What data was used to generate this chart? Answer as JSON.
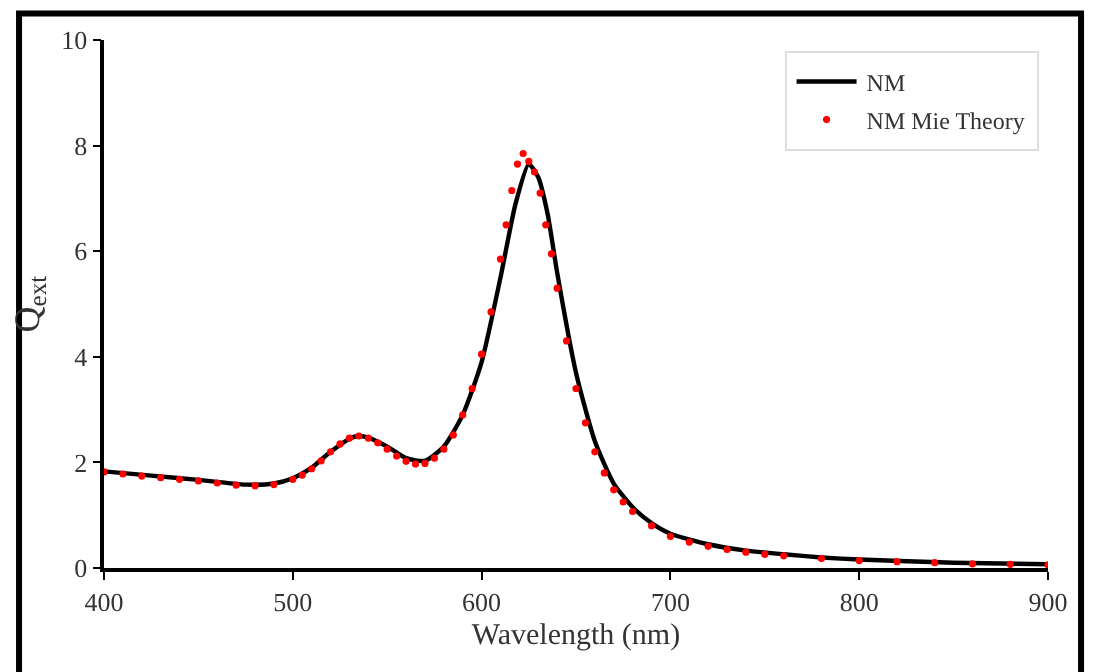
{
  "chart_data": {
    "type": "line",
    "xlabel": "Wavelength (nm)",
    "ylabel": "Q$_{ext}$",
    "xlim": [
      400,
      900
    ],
    "xticks": [
      400,
      500,
      600,
      700,
      800,
      900
    ],
    "ylim": [
      0,
      10
    ],
    "yticks": [
      0,
      2,
      4,
      6,
      8,
      10
    ],
    "legend": "top right",
    "series": [
      {
        "name": "NM",
        "color": "#000000",
        "line_style": "solid",
        "marker": "none",
        "x": [
          400,
          425,
          450,
          475,
          490,
          500,
          510,
          520,
          530,
          535,
          540,
          550,
          560,
          570,
          580,
          590,
          600,
          610,
          618,
          625,
          630,
          635,
          640,
          650,
          660,
          670,
          680,
          690,
          700,
          720,
          740,
          760,
          780,
          800,
          850,
          900
        ],
        "values": [
          1.83,
          1.75,
          1.67,
          1.58,
          1.6,
          1.7,
          1.9,
          2.2,
          2.45,
          2.5,
          2.47,
          2.3,
          2.08,
          2.03,
          2.3,
          2.9,
          3.9,
          5.5,
          6.9,
          7.65,
          7.4,
          6.7,
          5.6,
          3.7,
          2.4,
          1.6,
          1.15,
          0.85,
          0.65,
          0.45,
          0.33,
          0.26,
          0.2,
          0.16,
          0.1,
          0.07
        ]
      },
      {
        "name": "NM Mie Theory",
        "type": "scatter",
        "color": "#ff0000",
        "marker": "circle",
        "x": [
          400,
          410,
          420,
          430,
          440,
          450,
          460,
          470,
          480,
          490,
          500,
          505,
          510,
          515,
          520,
          525,
          530,
          535,
          540,
          545,
          550,
          555,
          560,
          565,
          570,
          575,
          580,
          585,
          590,
          595,
          600,
          605,
          610,
          613,
          616,
          619,
          622,
          625,
          628,
          631,
          634,
          637,
          640,
          645,
          650,
          655,
          660,
          665,
          670,
          675,
          680,
          690,
          700,
          710,
          720,
          730,
          740,
          750,
          760,
          780,
          800,
          820,
          840,
          860,
          880,
          900
        ],
        "values": [
          1.82,
          1.78,
          1.74,
          1.71,
          1.68,
          1.65,
          1.61,
          1.57,
          1.56,
          1.58,
          1.68,
          1.76,
          1.88,
          2.03,
          2.2,
          2.35,
          2.46,
          2.5,
          2.46,
          2.37,
          2.25,
          2.12,
          2.02,
          1.97,
          1.98,
          2.08,
          2.25,
          2.52,
          2.9,
          3.4,
          4.05,
          4.85,
          5.85,
          6.5,
          7.15,
          7.65,
          7.85,
          7.7,
          7.5,
          7.1,
          6.5,
          5.95,
          5.3,
          4.3,
          3.4,
          2.75,
          2.2,
          1.8,
          1.48,
          1.25,
          1.07,
          0.8,
          0.6,
          0.49,
          0.41,
          0.35,
          0.3,
          0.26,
          0.23,
          0.18,
          0.14,
          0.12,
          0.1,
          0.08,
          0.07,
          0.06
        ]
      }
    ]
  }
}
